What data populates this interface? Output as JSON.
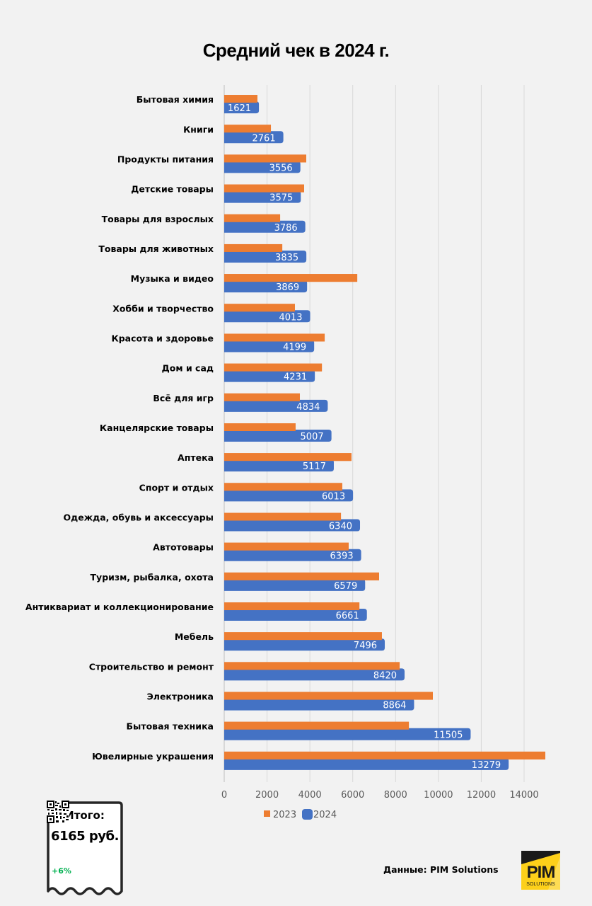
{
  "chart_data": {
    "type": "bar",
    "orientation": "horizontal",
    "title": "Средний чек в 2024 г.",
    "xlabel": "",
    "ylabel": "",
    "xlim": [
      0,
      14000
    ],
    "x_ticks": [
      "0",
      "2000",
      "4000",
      "6000",
      "8000",
      "10000",
      "12000",
      "14000"
    ],
    "grid": "vertical",
    "legend_position": "bottom",
    "categories": [
      "Бытовая химия",
      "Книги",
      "Продукты питания",
      "Детские товары",
      "Товары для взрослых",
      "Товары для животных",
      "Музыка и видео",
      "Хобби и творчество",
      "Красота и здоровье",
      "Дом и сад",
      "Всё для игр",
      "Канцелярские товары",
      "Аптека",
      "Спорт и отдых",
      "Одежда, обувь и аксессуары",
      "Автотовары",
      "Туризм, рыбалка, охота",
      "Антиквариат и коллекционирование",
      "Мебель",
      "Строительство и ремонт",
      "Электроника",
      "Бытовая техника",
      "Ювелирные украшения"
    ],
    "series": [
      {
        "name": "2023",
        "color": "#ed7d31",
        "values": [
          1550,
          2180,
          3830,
          3730,
          2610,
          2710,
          6210,
          3300,
          4690,
          4560,
          3530,
          3330,
          5940,
          5510,
          5450,
          5810,
          7230,
          6310,
          7360,
          8190,
          9740,
          8620,
          14990
        ],
        "labeled": false
      },
      {
        "name": "2024",
        "color": "#4472c4",
        "values": [
          1621,
          2761,
          3556,
          3575,
          3786,
          3835,
          3869,
          4013,
          4199,
          4231,
          4834,
          5007,
          5117,
          6013,
          6340,
          6393,
          6579,
          6661,
          7496,
          8420,
          8864,
          11505,
          13279
        ],
        "labeled": true
      }
    ]
  },
  "receipt": {
    "title": "Итого:",
    "total": "6165 руб.",
    "change": "+6%",
    "change_color": "#00b050",
    "icon": "qr-code-icon"
  },
  "footer": {
    "source": "Данные: PIM Solutions",
    "logo_text": "PIM",
    "logo_subtext": "SOLUTIONS",
    "logo_color": "#fdd01a"
  }
}
